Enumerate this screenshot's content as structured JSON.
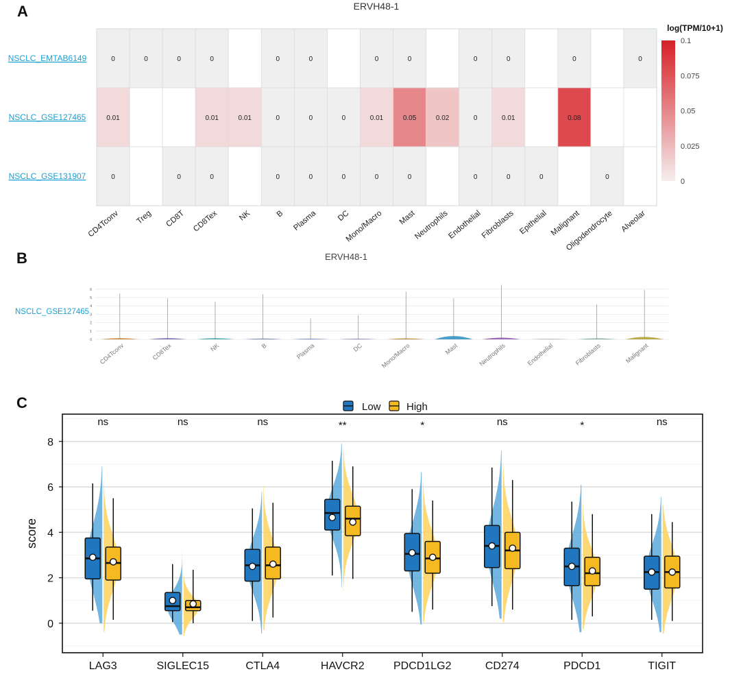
{
  "panels": {
    "a": "A",
    "b": "B",
    "c": "C"
  },
  "colors": {
    "cell_na": "#ffffff",
    "cell_zero": "#efefef",
    "grid_line": "#dcdcdc",
    "dataset_link": "#1a9fd0",
    "heat_low": "#f5eeee",
    "heat_high": "#d62027",
    "low_group": "#2077c0",
    "high_group": "#f5b921",
    "low_violin": "#5aa9dc",
    "high_violin": "#fbd25c"
  },
  "chart_data": [
    {
      "type": "heatmap",
      "title": "ERVH48-1",
      "rows": [
        "NSCLC_EMTAB6149",
        "NSCLC_GSE127465",
        "NSCLC_GSE131907"
      ],
      "columns": [
        "CD4Tconv",
        "Treg",
        "CD8T",
        "CD8Tex",
        "NK",
        "B",
        "Plasma",
        "DC",
        "Mono/Macro",
        "Mast",
        "Neutrophils",
        "Endothelial",
        "Fibroblasts",
        "Epithelial",
        "Malignant",
        "Oligodendrocyte",
        "Alveolar"
      ],
      "values": [
        [
          0,
          0,
          0,
          0,
          null,
          0,
          0,
          null,
          0,
          0,
          null,
          0,
          0,
          null,
          0,
          null,
          0
        ],
        [
          0.01,
          null,
          null,
          0.01,
          0.01,
          0,
          0,
          0,
          0.01,
          0.05,
          0.02,
          0,
          0.01,
          null,
          0.08,
          null,
          null
        ],
        [
          0,
          null,
          0,
          0,
          null,
          0,
          0,
          0,
          0,
          0,
          null,
          0,
          0,
          0,
          null,
          0,
          null
        ]
      ],
      "labels": [
        [
          "0",
          "0",
          "0",
          "0",
          "",
          "0",
          "0",
          "",
          "0",
          "0",
          "",
          "0",
          "0",
          "",
          "0",
          "",
          "0"
        ],
        [
          "0.01",
          "",
          "",
          "0.01",
          "0.01",
          "0",
          "0",
          "0",
          "0.01",
          "0.05",
          "0.02",
          "0",
          "0.01",
          "",
          "0.08",
          "",
          ""
        ],
        [
          "0",
          "",
          "0",
          "0",
          "",
          "0",
          "0",
          "0",
          "0",
          "0",
          "",
          "0",
          "0",
          "0",
          "",
          "0",
          ""
        ]
      ],
      "legend": {
        "title": "log(TPM/10+1)",
        "range": [
          0,
          0.1
        ],
        "ticks": [
          0.1,
          0.075,
          0.05,
          0.025,
          0
        ],
        "tick_labels": [
          "0.1",
          "0.075",
          "0.05",
          "0.025",
          "0"
        ]
      }
    },
    {
      "type": "violin",
      "title": "ERVH48-1",
      "dataset": "NSCLC_GSE127465",
      "categories": [
        "CD4Tconv",
        "CD8Tex",
        "NK",
        "B",
        "Plasma",
        "DC",
        "Mono/Macro",
        "Mast",
        "Neutrophils",
        "Endothelial",
        "Fibroblasts",
        "Malignant"
      ],
      "max_values": [
        5.5,
        4.9,
        4.5,
        5.4,
        2.5,
        2.9,
        5.7,
        4.9,
        6.5,
        0,
        4.2,
        5.9
      ],
      "bulge_heights": [
        0.15,
        0.15,
        0.15,
        0.1,
        0.08,
        0.08,
        0.12,
        0.4,
        0.2,
        0.05,
        0.12,
        0.3
      ],
      "violin_colors": [
        "#c47a2c",
        "#6f63a8",
        "#3aa0a8",
        "#6a6fb0",
        "#5b6bb0",
        "#6a6fb0",
        "#b07a30",
        "#2a8fc0",
        "#8a4fa8",
        "#777777",
        "#6aa090",
        "#b0a030"
      ],
      "ylim": [
        0,
        6.8
      ],
      "yticks": [
        0,
        1,
        2,
        3,
        4,
        5,
        6
      ]
    },
    {
      "type": "split-violin-box",
      "ylabel": "score",
      "xlabel": "",
      "ylim": [
        -1.3,
        9.2
      ],
      "yticks": [
        0,
        2,
        4,
        6,
        8
      ],
      "legend": [
        "Low",
        "High"
      ],
      "categories": [
        "LAG3",
        "SIGLEC15",
        "CTLA4",
        "HAVCR2",
        "PDCD1LG2",
        "CD274",
        "PDCD1",
        "TIGIT"
      ],
      "significance": [
        "ns",
        "ns",
        "ns",
        "**",
        "*",
        "ns",
        "*",
        "ns"
      ],
      "series": [
        {
          "name": "Low",
          "min": [
            0.55,
            0.05,
            0.1,
            2.1,
            0.5,
            0.75,
            0.15,
            0.15
          ],
          "q1": [
            1.95,
            0.55,
            1.85,
            4.1,
            2.3,
            2.45,
            1.65,
            1.5
          ],
          "median": [
            2.85,
            0.75,
            2.55,
            4.85,
            3.05,
            3.4,
            2.5,
            2.25
          ],
          "q3": [
            3.75,
            1.35,
            3.25,
            5.45,
            3.95,
            4.3,
            3.3,
            2.95
          ],
          "max": [
            6.15,
            2.6,
            5.05,
            7.15,
            5.9,
            6.85,
            5.35,
            4.8
          ],
          "mean": [
            2.9,
            1.0,
            2.5,
            4.65,
            3.1,
            3.4,
            2.5,
            2.25
          ]
        },
        {
          "name": "High",
          "min": [
            0.15,
            0.0,
            0.25,
            1.95,
            0.6,
            0.6,
            0.3,
            0.1
          ],
          "q1": [
            1.9,
            0.55,
            1.95,
            3.85,
            2.2,
            2.4,
            1.65,
            1.55
          ],
          "median": [
            2.65,
            0.7,
            2.55,
            4.6,
            2.85,
            3.2,
            2.2,
            2.25
          ],
          "q3": [
            3.35,
            1.0,
            3.35,
            5.15,
            3.6,
            4.0,
            2.9,
            2.95
          ],
          "max": [
            5.5,
            2.35,
            5.3,
            6.9,
            5.4,
            6.3,
            4.8,
            4.45
          ],
          "mean": [
            2.7,
            0.85,
            2.6,
            4.45,
            2.9,
            3.3,
            2.3,
            2.25
          ]
        }
      ]
    }
  ]
}
